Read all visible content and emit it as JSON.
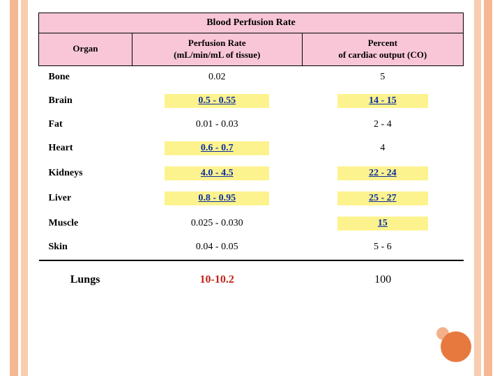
{
  "table": {
    "title": "Blood Perfusion Rate",
    "headers": {
      "organ": "Organ",
      "rate_l1": "Perfusion Rate",
      "rate_l2": "(mL/min/mL of tissue)",
      "co_l1": "Percent",
      "co_l2": "of cardiac output (CO)"
    },
    "rows": [
      {
        "organ": "Bone",
        "rate": "0.02",
        "co": "5",
        "rate_hl": false,
        "co_hl": false,
        "rate_link": false,
        "co_link": false
      },
      {
        "organ": "Brain",
        "rate": "0.5 - 0.55",
        "co": "14 - 15",
        "rate_hl": true,
        "co_hl": true,
        "rate_link": true,
        "co_link": true
      },
      {
        "organ": "Fat",
        "rate": "0.01 - 0.03",
        "co": "2 - 4",
        "rate_hl": false,
        "co_hl": false,
        "rate_link": false,
        "co_link": false
      },
      {
        "organ": "Heart",
        "rate": "0.6 - 0.7",
        "co": "4",
        "rate_hl": true,
        "co_hl": false,
        "rate_link": true,
        "co_link": false
      },
      {
        "organ": "Kidneys",
        "rate": "4.0 - 4.5",
        "co": "22 - 24",
        "rate_hl": true,
        "co_hl": true,
        "rate_link": true,
        "co_link": true
      },
      {
        "organ": "Liver",
        "rate": "0.8 - 0.95",
        "co": "25 - 27",
        "rate_hl": true,
        "co_hl": true,
        "rate_link": true,
        "co_link": true
      },
      {
        "organ": "Muscle",
        "rate": "0.025 - 0.030",
        "co": "15",
        "rate_hl": false,
        "co_hl": true,
        "rate_link": false,
        "co_link": true
      },
      {
        "organ": "Skin",
        "rate": "0.04 - 0.05",
        "co": "5 - 6",
        "rate_hl": false,
        "co_hl": false,
        "rate_link": false,
        "co_link": false
      }
    ]
  },
  "lungs": {
    "organ": "Lungs",
    "rate": "10-10.2",
    "co": "100"
  },
  "colors": {
    "header_bg": "#f9c6d8",
    "highlight_bg": "#fcf38e",
    "link_color": "#0b2ea0",
    "stripe_dark": "#f6b892",
    "stripe_light": "#f8cdb0",
    "lungs_rate_color": "#c02418"
  }
}
